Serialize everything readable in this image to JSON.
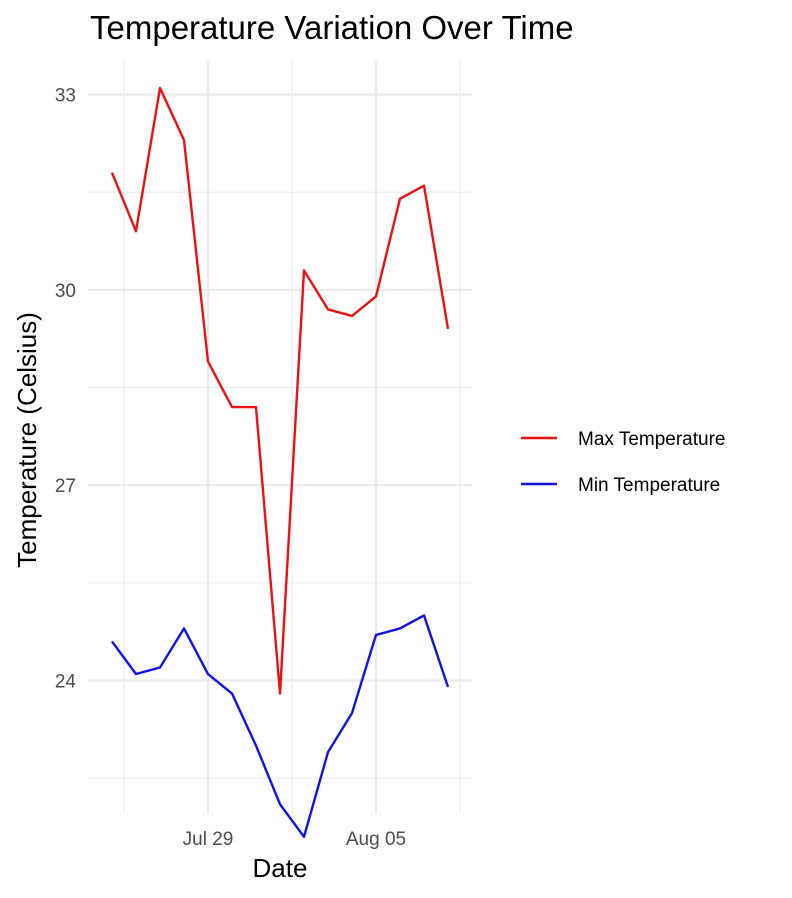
{
  "chart_data": {
    "type": "line",
    "title": "Temperature Variation Over Time",
    "xlabel": "Date",
    "ylabel": "Temperature (Celsius)",
    "x": [
      "2024-07-25",
      "2024-07-26",
      "2024-07-27",
      "2024-07-28",
      "2024-07-29",
      "2024-07-30",
      "2024-07-31",
      "2024-08-01",
      "2024-08-02",
      "2024-08-03",
      "2024-08-04",
      "2024-08-05",
      "2024-08-06",
      "2024-08-07",
      "2024-08-08"
    ],
    "x_ticks": [
      {
        "date": "2024-07-29",
        "label": "Jul 29"
      },
      {
        "date": "2024-08-05",
        "label": "Aug 05"
      }
    ],
    "y_ticks": [
      24,
      27,
      30,
      33
    ],
    "ylim": [
      21.95,
      33.5
    ],
    "xlim": [
      "2024-07-24",
      "2024-08-09"
    ],
    "grid": true,
    "legend_position": "right",
    "series": [
      {
        "name": "Max Temperature",
        "color": "#ee1111",
        "values": [
          31.8,
          30.9,
          33.1,
          32.3,
          28.9,
          28.2,
          28.2,
          23.8,
          30.3,
          29.7,
          29.6,
          29.9,
          31.4,
          31.6,
          29.4
        ]
      },
      {
        "name": "Min Temperature",
        "color": "#1111ee",
        "values": [
          24.6,
          24.1,
          24.2,
          24.8,
          24.1,
          23.8,
          23.0,
          22.1,
          21.6,
          22.9,
          23.5,
          24.7,
          24.8,
          25.0,
          23.9
        ]
      }
    ]
  }
}
